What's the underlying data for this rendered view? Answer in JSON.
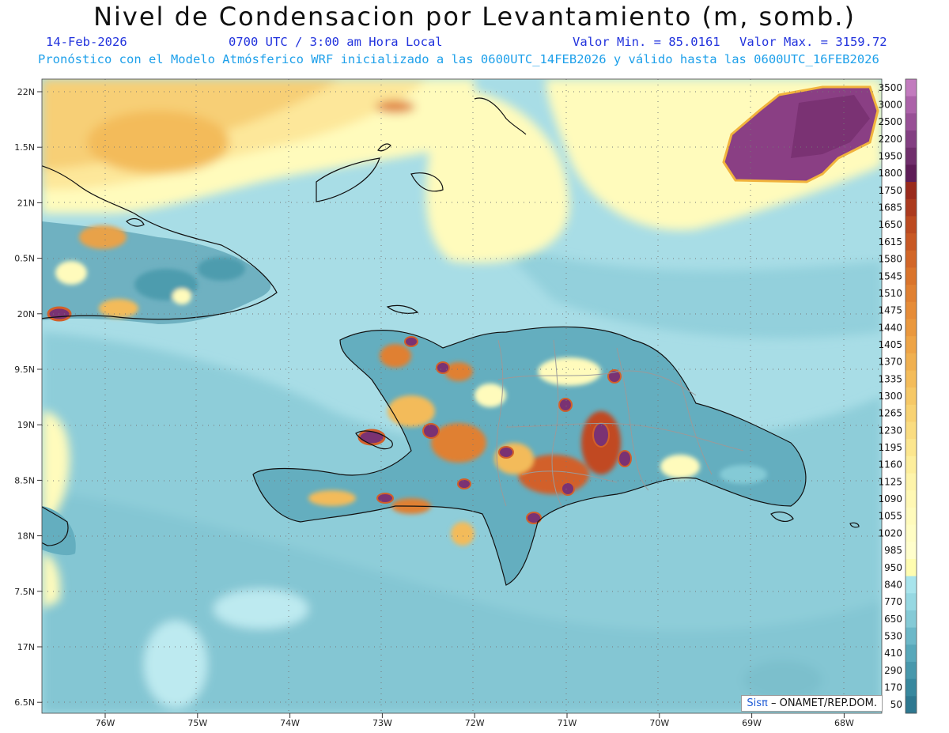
{
  "header": {
    "title": "Nivel de Condensacion por Levantamiento (m, somb.)",
    "date": "14-Feb-2026",
    "time": "0700 UTC / 3:00 am Hora Local",
    "min_label": "Valor Min. = 85.0161",
    "max_label": "Valor Max. = 3159.72",
    "model_line": "Pronóstico con el Modelo Atmósferico WRF inicializado a las 0600UTC_14FEB2026 y válido hasta las  0600UTC_16FEB2026"
  },
  "axes": {
    "lat_labels": [
      "22N",
      "1.5N",
      "21N",
      "0.5N",
      "20N",
      "9.5N",
      "19N",
      "8.5N",
      "18N",
      "7.5N",
      "17N",
      "6.5N"
    ],
    "lon_labels": [
      "76W",
      "75W",
      "74W",
      "73W",
      "72W",
      "71W",
      "70W",
      "69W",
      "68W"
    ]
  },
  "colorbar": {
    "labels": [
      "3500",
      "3000",
      "2500",
      "2200",
      "1950",
      "1800",
      "1750",
      "1685",
      "1650",
      "1615",
      "1580",
      "1545",
      "1510",
      "1475",
      "1440",
      "1405",
      "1370",
      "1335",
      "1300",
      "1265",
      "1230",
      "1195",
      "1160",
      "1125",
      "1090",
      "1055",
      "1020",
      "985",
      "950",
      "840",
      "770",
      "650",
      "530",
      "410",
      "290",
      "170",
      "50"
    ],
    "colors": [
      "#c27bbe",
      "#ac62a9",
      "#985096",
      "#833f82",
      "#702e6c",
      "#5e1c57",
      "#9a2a1c",
      "#ac3a1e",
      "#bc4a20",
      "#c85824",
      "#d26628",
      "#da742c",
      "#e08032",
      "#e68c38",
      "#ea983e",
      "#eea446",
      "#f0b050",
      "#f4bc5a",
      "#f6c866",
      "#f8d272",
      "#fadc80",
      "#fce68e",
      "#fdee9c",
      "#fef4aa",
      "#fff8b4",
      "#fffbbc",
      "#fffdc4",
      "#fffecc",
      "#fffdb0",
      "#a8e4ec",
      "#96d8e2",
      "#84cad6",
      "#6cb8c8",
      "#58a8ba",
      "#4898ac",
      "#38889e",
      "#2e7890"
    ]
  },
  "credit": {
    "brand": "Sisπ",
    "org": "– ONAMET/REP.DOM."
  },
  "colors": {
    "sea_base": "#a8dde6",
    "land_outline": "#111111",
    "province_lines": "#9a9a9a",
    "grid": "#777777"
  }
}
